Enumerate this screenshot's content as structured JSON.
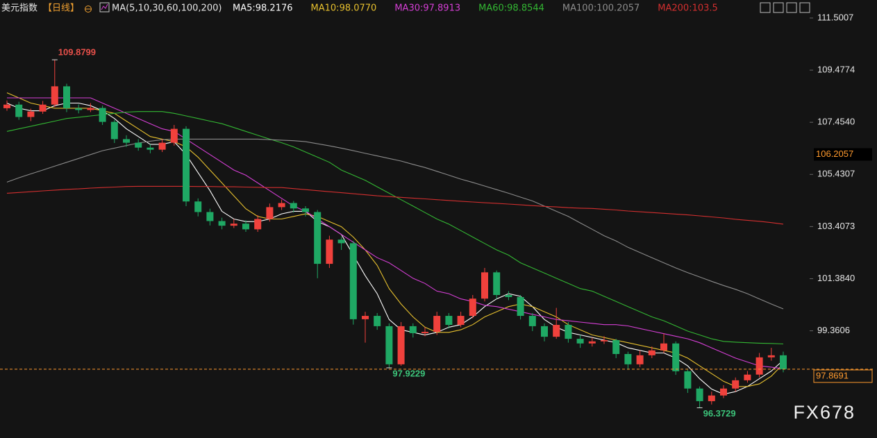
{
  "chart_data": {
    "type": "candlestick",
    "title": "美元指数",
    "period": "【日线】",
    "indicator": "MA(5,10,30,60,100,200)",
    "up_color": "#f0413c",
    "down_color": "#1fa864",
    "candles": {
      "open": [
        108.0,
        108.14,
        107.66,
        107.87,
        108.14,
        108.85,
        108.0,
        107.93,
        108.01,
        107.47,
        106.8,
        106.66,
        106.47,
        106.39,
        106.66,
        107.2,
        104.38,
        103.97,
        103.62,
        103.44,
        103.52,
        103.3,
        103.7,
        104.16,
        104.32,
        104.11,
        103.97,
        101.96,
        102.9,
        102.76,
        99.81,
        99.94,
        99.54,
        98.06,
        99.54,
        99.27,
        99.32,
        99.94,
        99.59,
        99.94,
        100.61,
        101.63,
        100.75,
        100.67,
        99.94,
        99.54,
        99.13,
        99.59,
        99.05,
        98.87,
        98.95,
        99.0,
        98.46,
        98.06,
        98.41,
        98.6,
        98.87,
        97.79,
        97.12,
        96.63,
        96.85,
        97.12,
        97.44,
        97.66,
        98.33,
        98.41
      ],
      "high": [
        108.3,
        108.25,
        107.98,
        108.28,
        109.8799,
        108.95,
        108.15,
        108.2,
        108.1,
        107.55,
        106.95,
        106.8,
        106.6,
        106.8,
        107.35,
        107.3,
        104.5,
        104.1,
        103.75,
        103.7,
        103.65,
        103.85,
        104.3,
        104.45,
        104.4,
        104.2,
        104.05,
        103.05,
        103.0,
        102.85,
        100.1,
        100.05,
        99.65,
        99.7,
        99.65,
        99.5,
        100.1,
        100.05,
        100.1,
        100.75,
        101.8,
        101.7,
        100.9,
        100.75,
        100.05,
        99.65,
        100.25,
        99.7,
        99.2,
        99.1,
        99.15,
        99.05,
        98.55,
        98.6,
        98.75,
        99.25,
        98.95,
        97.85,
        97.2,
        97.0,
        97.25,
        97.55,
        97.8,
        98.5,
        98.7,
        98.55
      ],
      "low": [
        107.9,
        107.55,
        107.5,
        107.78,
        108.05,
        107.85,
        107.8,
        107.85,
        107.35,
        106.65,
        106.5,
        106.35,
        106.25,
        106.3,
        106.55,
        104.2,
        103.8,
        103.45,
        103.3,
        103.35,
        103.2,
        103.2,
        103.6,
        104.05,
        103.95,
        103.8,
        101.4,
        101.8,
        102.5,
        99.6,
        98.9,
        99.4,
        97.9229,
        98.0,
        99.1,
        99.15,
        99.2,
        99.45,
        99.5,
        99.85,
        100.5,
        100.6,
        100.55,
        99.8,
        99.35,
        98.95,
        99.05,
        98.9,
        98.7,
        98.75,
        98.85,
        98.3,
        97.85,
        97.95,
        98.3,
        98.5,
        97.65,
        96.95,
        96.3729,
        96.5,
        96.75,
        97.0,
        97.35,
        97.55,
        98.2,
        97.75
      ],
      "close": [
        108.14,
        107.66,
        107.87,
        108.14,
        108.85,
        108.0,
        107.93,
        108.01,
        107.47,
        106.8,
        106.66,
        106.47,
        106.39,
        106.66,
        107.2,
        104.38,
        103.97,
        103.62,
        103.44,
        103.52,
        103.3,
        103.7,
        104.16,
        104.32,
        104.11,
        103.97,
        101.96,
        102.9,
        102.76,
        99.81,
        99.94,
        99.54,
        98.06,
        99.54,
        99.27,
        99.32,
        99.94,
        99.59,
        99.94,
        100.61,
        101.63,
        100.75,
        100.67,
        99.94,
        99.54,
        99.13,
        99.59,
        99.05,
        98.87,
        98.95,
        99.0,
        98.46,
        98.06,
        98.41,
        98.6,
        98.87,
        97.79,
        97.12,
        96.63,
        96.85,
        97.12,
        97.44,
        97.66,
        98.33,
        98.41,
        97.87
      ]
    },
    "series": [
      {
        "name": "MA5:98.2176",
        "color": "#ffffff",
        "values": [
          108.2,
          108.0,
          107.9,
          107.9,
          108.1,
          108.2,
          108.2,
          108.1,
          107.9,
          107.6,
          107.2,
          106.9,
          106.6,
          106.6,
          106.7,
          106.2,
          105.5,
          104.8,
          104.0,
          103.7,
          103.6,
          103.6,
          103.7,
          103.9,
          104.0,
          104.0,
          103.6,
          103.4,
          103.1,
          102.3,
          101.5,
          100.8,
          99.8,
          99.4,
          99.3,
          99.2,
          99.3,
          99.5,
          99.6,
          99.9,
          100.3,
          100.6,
          100.8,
          100.7,
          100.3,
          99.8,
          99.5,
          99.3,
          99.2,
          99.1,
          99.0,
          98.9,
          98.7,
          98.6,
          98.5,
          98.5,
          98.3,
          98.0,
          97.5,
          97.1,
          96.9,
          97.0,
          97.2,
          97.5,
          97.8,
          98.22
        ]
      },
      {
        "name": "MA10:98.0770",
        "color": "#e8c12e",
        "values": [
          108.6,
          108.4,
          108.2,
          108.1,
          108.0,
          108.0,
          108.0,
          108.0,
          107.9,
          107.8,
          107.5,
          107.2,
          106.9,
          106.8,
          106.7,
          106.5,
          106.1,
          105.6,
          105.1,
          104.6,
          104.1,
          103.8,
          103.7,
          103.7,
          103.8,
          103.9,
          103.8,
          103.6,
          103.4,
          103.0,
          102.5,
          101.9,
          101.0,
          100.4,
          99.9,
          99.5,
          99.3,
          99.3,
          99.4,
          99.6,
          99.9,
          100.1,
          100.3,
          100.4,
          100.3,
          100.1,
          99.9,
          99.6,
          99.4,
          99.2,
          99.1,
          99.0,
          98.9,
          98.8,
          98.7,
          98.6,
          98.5,
          98.3,
          98.0,
          97.7,
          97.4,
          97.2,
          97.2,
          97.3,
          97.6,
          98.08
        ]
      },
      {
        "name": "MA30:97.8913",
        "color": "#d63fd6",
        "values": [
          108.4,
          108.4,
          108.4,
          108.4,
          108.4,
          108.4,
          108.4,
          108.4,
          108.2,
          108.0,
          107.8,
          107.6,
          107.4,
          107.2,
          107.1,
          106.8,
          106.5,
          106.2,
          105.9,
          105.6,
          105.4,
          105.1,
          104.8,
          104.5,
          104.2,
          104.0,
          103.7,
          103.4,
          103.1,
          102.8,
          102.5,
          102.2,
          102.0,
          101.7,
          101.4,
          101.2,
          100.9,
          100.8,
          100.6,
          100.5,
          100.35,
          100.3,
          100.2,
          100.1,
          100.0,
          99.9,
          99.8,
          99.75,
          99.7,
          99.65,
          99.6,
          99.6,
          99.55,
          99.45,
          99.35,
          99.25,
          99.15,
          99.05,
          98.9,
          98.7,
          98.5,
          98.3,
          98.15,
          98.0,
          97.95,
          97.89
        ]
      },
      {
        "name": "MA60:98.8544",
        "color": "#33b833",
        "values": [
          107.1,
          107.2,
          107.3,
          107.4,
          107.5,
          107.6,
          107.65,
          107.7,
          107.75,
          107.8,
          107.85,
          107.87,
          107.87,
          107.87,
          107.8,
          107.7,
          107.6,
          107.5,
          107.4,
          107.25,
          107.1,
          106.95,
          106.8,
          106.66,
          106.5,
          106.3,
          106.1,
          105.9,
          105.6,
          105.4,
          105.2,
          104.95,
          104.7,
          104.45,
          104.2,
          103.95,
          103.7,
          103.5,
          103.25,
          103.0,
          102.75,
          102.5,
          102.3,
          102.0,
          101.8,
          101.6,
          101.4,
          101.2,
          101.0,
          100.9,
          100.7,
          100.5,
          100.3,
          100.1,
          99.9,
          99.75,
          99.55,
          99.35,
          99.2,
          99.05,
          98.95,
          98.92,
          98.9,
          98.88,
          98.87,
          98.85
        ]
      },
      {
        "name": "MA100:100.2057",
        "color": "#8c8c8c",
        "values": [
          105.13,
          105.3,
          105.45,
          105.6,
          105.75,
          105.9,
          106.05,
          106.2,
          106.35,
          106.45,
          106.55,
          106.65,
          106.72,
          106.78,
          106.8,
          106.8,
          106.8,
          106.8,
          106.8,
          106.8,
          106.8,
          106.8,
          106.78,
          106.76,
          106.74,
          106.7,
          106.62,
          106.54,
          106.45,
          106.35,
          106.25,
          106.15,
          106.05,
          105.95,
          105.82,
          105.7,
          105.55,
          105.4,
          105.25,
          105.12,
          104.98,
          104.84,
          104.7,
          104.55,
          104.4,
          104.2,
          104.0,
          103.8,
          103.55,
          103.3,
          103.05,
          102.85,
          102.6,
          102.4,
          102.2,
          102.0,
          101.8,
          101.62,
          101.45,
          101.28,
          101.12,
          100.97,
          100.8,
          100.6,
          100.4,
          100.21
        ]
      },
      {
        "name": "MA200:103.5",
        "color": "#d42f2f",
        "values": [
          104.7,
          104.73,
          104.76,
          104.79,
          104.82,
          104.85,
          104.87,
          104.9,
          104.92,
          104.94,
          104.96,
          104.97,
          104.97,
          104.97,
          104.97,
          104.97,
          104.96,
          104.96,
          104.95,
          104.95,
          104.94,
          104.93,
          104.92,
          104.92,
          104.88,
          104.84,
          104.8,
          104.76,
          104.72,
          104.68,
          104.64,
          104.6,
          104.57,
          104.54,
          104.51,
          104.48,
          104.45,
          104.42,
          104.39,
          104.36,
          104.33,
          104.31,
          104.28,
          104.25,
          104.22,
          104.19,
          104.17,
          104.14,
          104.12,
          104.11,
          104.08,
          104.05,
          104.01,
          103.98,
          103.95,
          103.92,
          103.89,
          103.86,
          103.82,
          103.78,
          103.74,
          103.69,
          103.65,
          103.61,
          103.56,
          103.5
        ]
      }
    ],
    "ylim": [
      95.2,
      112.2
    ],
    "yticks": [
      111.5007,
      109.4774,
      {
        "value": 107.454,
        "label": "107.4540"
      },
      105.4307,
      103.4073,
      {
        "value": 101.384,
        "label": "101.3840"
      },
      99.3606
    ],
    "annotations": [
      109.8799,
      97.9229,
      96.3729
    ],
    "marker": {
      "value": 106.2057,
      "color": "#ff9a2e"
    },
    "last_price": {
      "value": 97.8691,
      "color": "#ff9a2e"
    },
    "watermark": "FX678"
  }
}
